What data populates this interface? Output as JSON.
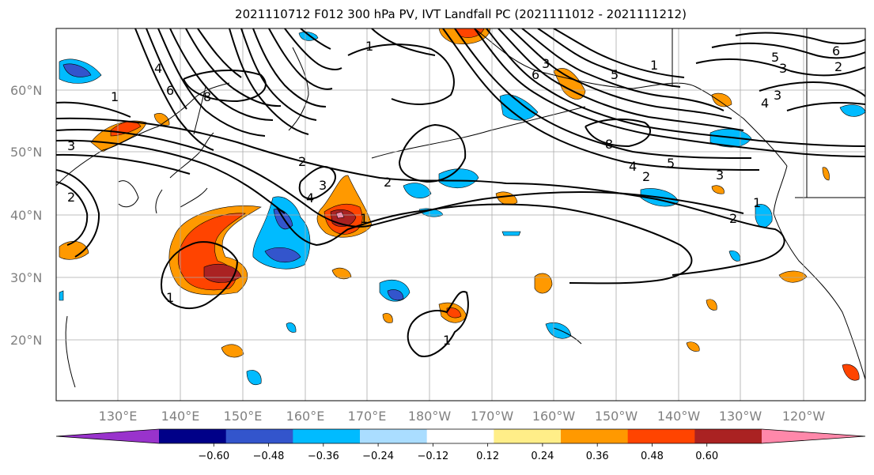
{
  "title": "2021110712 F012 300 hPa PV, IVT Landfall PC (2021111012 - 2021111212)",
  "lat_labels": [
    "60°N",
    "50°N",
    "40°N",
    "30°N",
    "20°N"
  ],
  "lon_labels": [
    "130°E",
    "140°E",
    "150°E",
    "160°E",
    "170°E",
    "180°W",
    "170°W",
    "160°W",
    "150°W",
    "140°W",
    "130°W",
    "120°W"
  ],
  "colorbar": {
    "ticks": [
      "−0.60",
      "−0.48",
      "−0.36",
      "−0.24",
      "−0.12",
      "0.12",
      "0.24",
      "0.36",
      "0.48",
      "0.60"
    ],
    "colors": [
      "#9933cc",
      "#000088",
      "#3355cc",
      "#00bbff",
      "#aaddff",
      "#ffffff",
      "#ffee88",
      "#ff9900",
      "#ff4400",
      "#aa2222",
      "#ff88aa"
    ]
  },
  "contour_labels": [
    "1",
    "2",
    "3",
    "4",
    "5",
    "6",
    "8"
  ]
}
